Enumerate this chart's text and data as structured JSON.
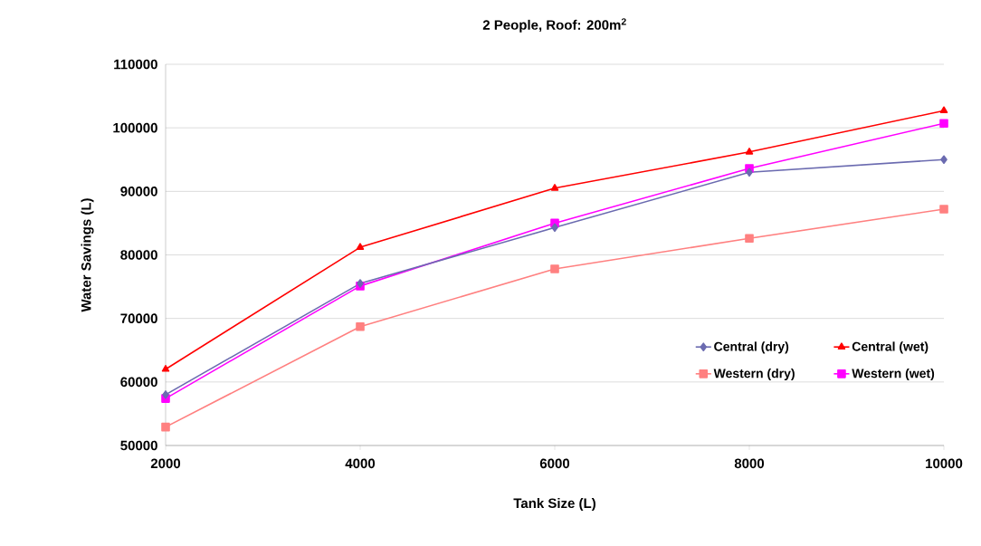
{
  "chart_data": {
    "type": "line",
    "title": "2 People, Roof: 200m$^{2}$",
    "xlabel": "Tank Size (L)",
    "ylabel": "Water Savings (L)",
    "x": [
      2000,
      4000,
      6000,
      8000,
      10000
    ],
    "series": [
      {
        "name": "Central (dry)",
        "color": "#6b6bb0",
        "marker": "diamond",
        "values": [
          58000,
          75500,
          84300,
          93000,
          95000
        ]
      },
      {
        "name": "Central (wet)",
        "color": "#ff0000",
        "marker": "triangle",
        "values": [
          62000,
          81200,
          90500,
          96200,
          102700
        ]
      },
      {
        "name": "Western (dry)",
        "color": "#ff8080",
        "marker": "square",
        "values": [
          52900,
          68700,
          77800,
          82600,
          87200
        ]
      },
      {
        "name": "Western (wet)",
        "color": "#ff00ff",
        "marker": "square",
        "values": [
          57400,
          75100,
          85000,
          93600,
          100700
        ]
      }
    ],
    "xlim": [
      2000,
      10000
    ],
    "xticks": [
      2000,
      4000,
      6000,
      8000,
      10000
    ],
    "ylim": [
      50000,
      110000
    ],
    "yticks": [
      50000,
      60000,
      70000,
      80000,
      90000,
      100000,
      110000
    ],
    "grid": "y",
    "legend": "bottom right"
  }
}
